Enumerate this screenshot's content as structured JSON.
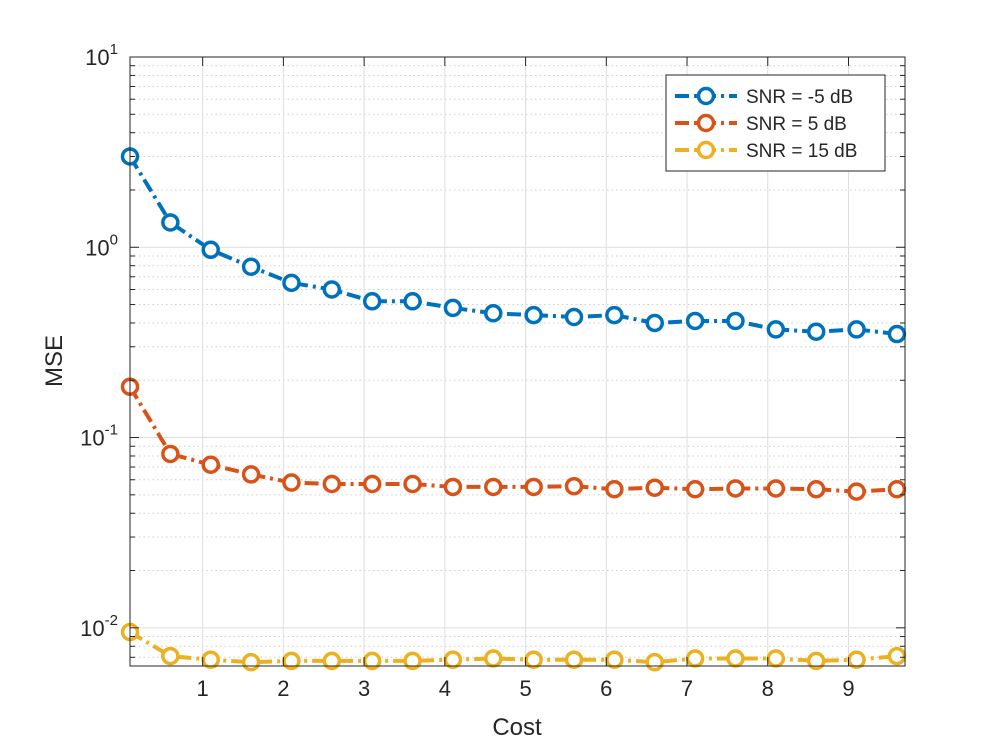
{
  "chart_data": {
    "type": "line",
    "title": "",
    "xlabel": "Cost",
    "ylabel": "MSE",
    "xlim": [
      0.1,
      9.7
    ],
    "ylim": [
      0.0063,
      10
    ],
    "yscale": "log",
    "grid": true,
    "minor_grid": true,
    "legend_position": "top-right",
    "xticks": [
      1,
      2,
      3,
      4,
      5,
      6,
      7,
      8,
      9
    ],
    "xtick_labels": [
      "1",
      "2",
      "3",
      "4",
      "5",
      "6",
      "7",
      "8",
      "9"
    ],
    "yticks": [
      {
        "value": 0.01,
        "base": "10",
        "exp": "-2"
      },
      {
        "value": 0.1,
        "base": "10",
        "exp": "-1"
      },
      {
        "value": 1,
        "base": "10",
        "exp": "0"
      },
      {
        "value": 10,
        "base": "10",
        "exp": "1"
      }
    ],
    "x": [
      0.1,
      0.6,
      1.1,
      1.6,
      2.1,
      2.6,
      3.1,
      3.6,
      4.1,
      4.6,
      5.1,
      5.6,
      6.1,
      6.6,
      7.1,
      7.6,
      8.1,
      8.6,
      9.1,
      9.6
    ],
    "series": [
      {
        "name": "SNR = -5 dB",
        "color": "#0072BD",
        "values": [
          3.0,
          1.35,
          0.97,
          0.79,
          0.65,
          0.6,
          0.52,
          0.52,
          0.48,
          0.45,
          0.44,
          0.43,
          0.44,
          0.4,
          0.41,
          0.41,
          0.37,
          0.36,
          0.37,
          0.35
        ]
      },
      {
        "name": "SNR = 5 dB",
        "color": "#D95319",
        "values": [
          0.185,
          0.082,
          0.072,
          0.064,
          0.058,
          0.057,
          0.057,
          0.057,
          0.055,
          0.055,
          0.055,
          0.0555,
          0.0535,
          0.0545,
          0.0535,
          0.054,
          0.054,
          0.0535,
          0.052,
          0.0535
        ]
      },
      {
        "name": "SNR = 15 dB",
        "color": "#EDB120",
        "values": [
          0.0095,
          0.0071,
          0.0068,
          0.0066,
          0.0067,
          0.0067,
          0.0067,
          0.0067,
          0.0068,
          0.0069,
          0.0068,
          0.0068,
          0.0068,
          0.0066,
          0.0069,
          0.0069,
          0.0069,
          0.0067,
          0.0068,
          0.0071
        ]
      }
    ]
  }
}
